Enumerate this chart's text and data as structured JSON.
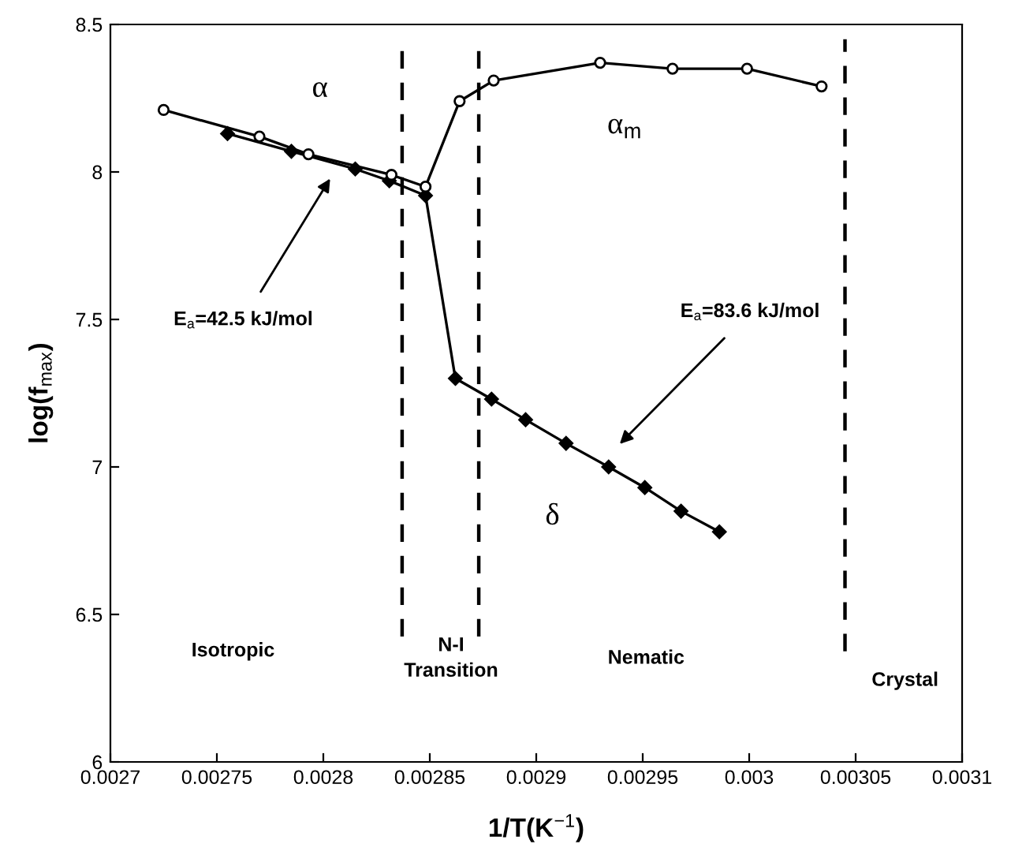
{
  "chart_data": {
    "type": "line",
    "xlabel": "1/T(K$^{−1}$)",
    "ylabel": "log(f$_{max}$)",
    "xlim": [
      0.0027,
      0.0031
    ],
    "xticks": [
      0.0027,
      0.00275,
      0.0028,
      0.00285,
      0.0029,
      0.00295,
      0.003,
      0.00305,
      0.0031
    ],
    "ylim": [
      6,
      8.5
    ],
    "yticks": [
      6,
      6.5,
      7,
      7.5,
      8,
      8.5
    ],
    "grid": false,
    "legend": false,
    "line_style": "solid",
    "series": [
      {
        "color": "#000000",
        "marker": "circle",
        "x": [
          0.002725,
          0.00277,
          0.002793,
          0.002832,
          0.002848,
          0.002864,
          0.00288,
          0.00293,
          0.002964,
          0.002999,
          0.003034
        ],
        "values": [
          8.21,
          8.12,
          8.06,
          7.99,
          7.95,
          8.24,
          8.31,
          8.37,
          8.35,
          8.35,
          8.29
        ]
      },
      {
        "color": "#000000",
        "marker": "diamond",
        "x": [
          0.002755,
          0.002785,
          0.002815,
          0.002831,
          0.002848,
          0.002862,
          0.002879,
          0.002895,
          0.002914,
          0.002934,
          0.002951,
          0.002968,
          0.002986
        ],
        "values": [
          8.13,
          8.07,
          8.01,
          7.97,
          7.92,
          7.3,
          7.23,
          7.16,
          7.08,
          7.0,
          6.93,
          6.85,
          6.78
        ]
      }
    ],
    "ref_lines": [
      {
        "axis": "x",
        "value": 0.002837,
        "label": null,
        "color": "#000000",
        "line_style": "dashed"
      },
      {
        "axis": "x",
        "value": 0.002873,
        "label": null,
        "color": "#000000",
        "line_style": "dashed"
      },
      {
        "axis": "x",
        "value": 0.003045,
        "label": null,
        "color": "#000000",
        "line_style": "dashed"
      }
    ],
    "annotations": [
      "α",
      "α$_{m}$",
      "δ",
      "E$_{a}$=42.5 kJ/mol",
      "E$_{a}$=83.6 kJ/mol",
      "Isotropic",
      "N-I\nTransition",
      "Nematic",
      "Crystal"
    ]
  }
}
